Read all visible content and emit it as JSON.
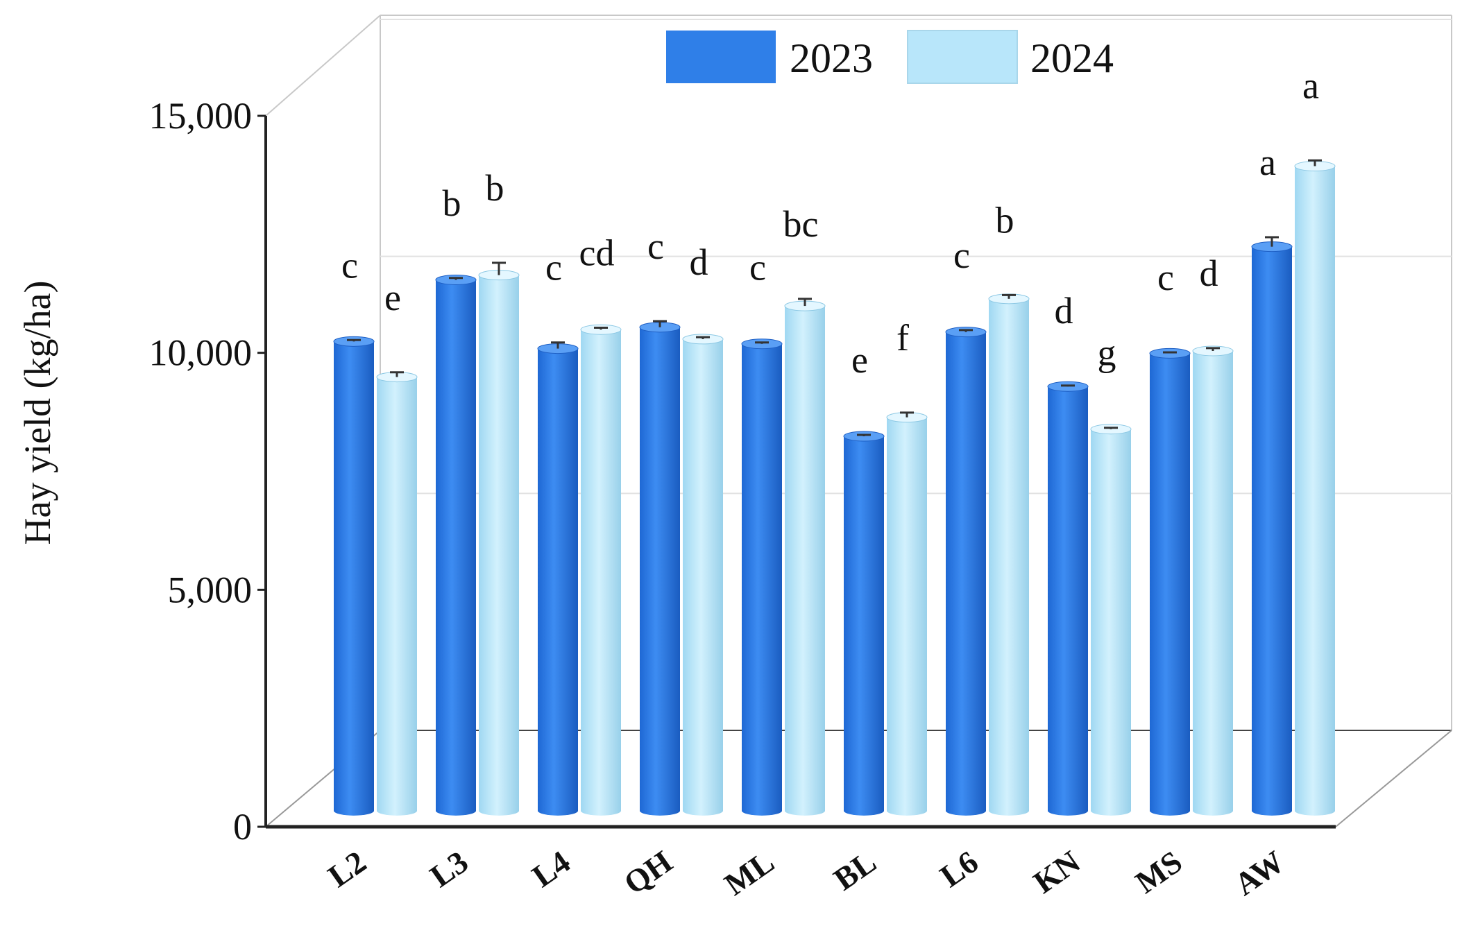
{
  "chart_data": {
    "type": "bar",
    "ylabel": "Hay yield (kg/ha)",
    "xlabel": "",
    "ylim": [
      0,
      15000
    ],
    "yticks": [
      {
        "value": 0,
        "label": "0"
      },
      {
        "value": 5000,
        "label": "5,000"
      },
      {
        "value": 10000,
        "label": "10,000"
      },
      {
        "value": 15000,
        "label": "15,000"
      }
    ],
    "grid": true,
    "three_d": true,
    "legend_position": "top-center",
    "categories": [
      "L2",
      "L3",
      "L4",
      "QH",
      "ML",
      "BL",
      "L6",
      "KN",
      "MS",
      "AW"
    ],
    "series": [
      {
        "name": "2023",
        "color": "#2f7fe8",
        "values": [
          9900,
          11200,
          9750,
          10200,
          9850,
          7900,
          10100,
          8950,
          9650,
          11900
        ],
        "errors": [
          30,
          40,
          130,
          130,
          30,
          30,
          40,
          20,
          20,
          200
        ],
        "letters": [
          "c",
          "b",
          "c",
          "c",
          "c",
          "e",
          "c",
          "d",
          "c",
          "a"
        ]
      },
      {
        "name": "2024",
        "color": "#b8e6fa",
        "values": [
          9150,
          11300,
          10150,
          9950,
          10650,
          8300,
          10800,
          8050,
          9700,
          13600
        ],
        "errors": [
          100,
          260,
          40,
          40,
          150,
          100,
          80,
          30,
          60,
          120
        ],
        "letters": [
          "e",
          "b",
          "cd",
          "d",
          "bc",
          "f",
          "b",
          "g",
          "d",
          "a"
        ]
      }
    ]
  }
}
